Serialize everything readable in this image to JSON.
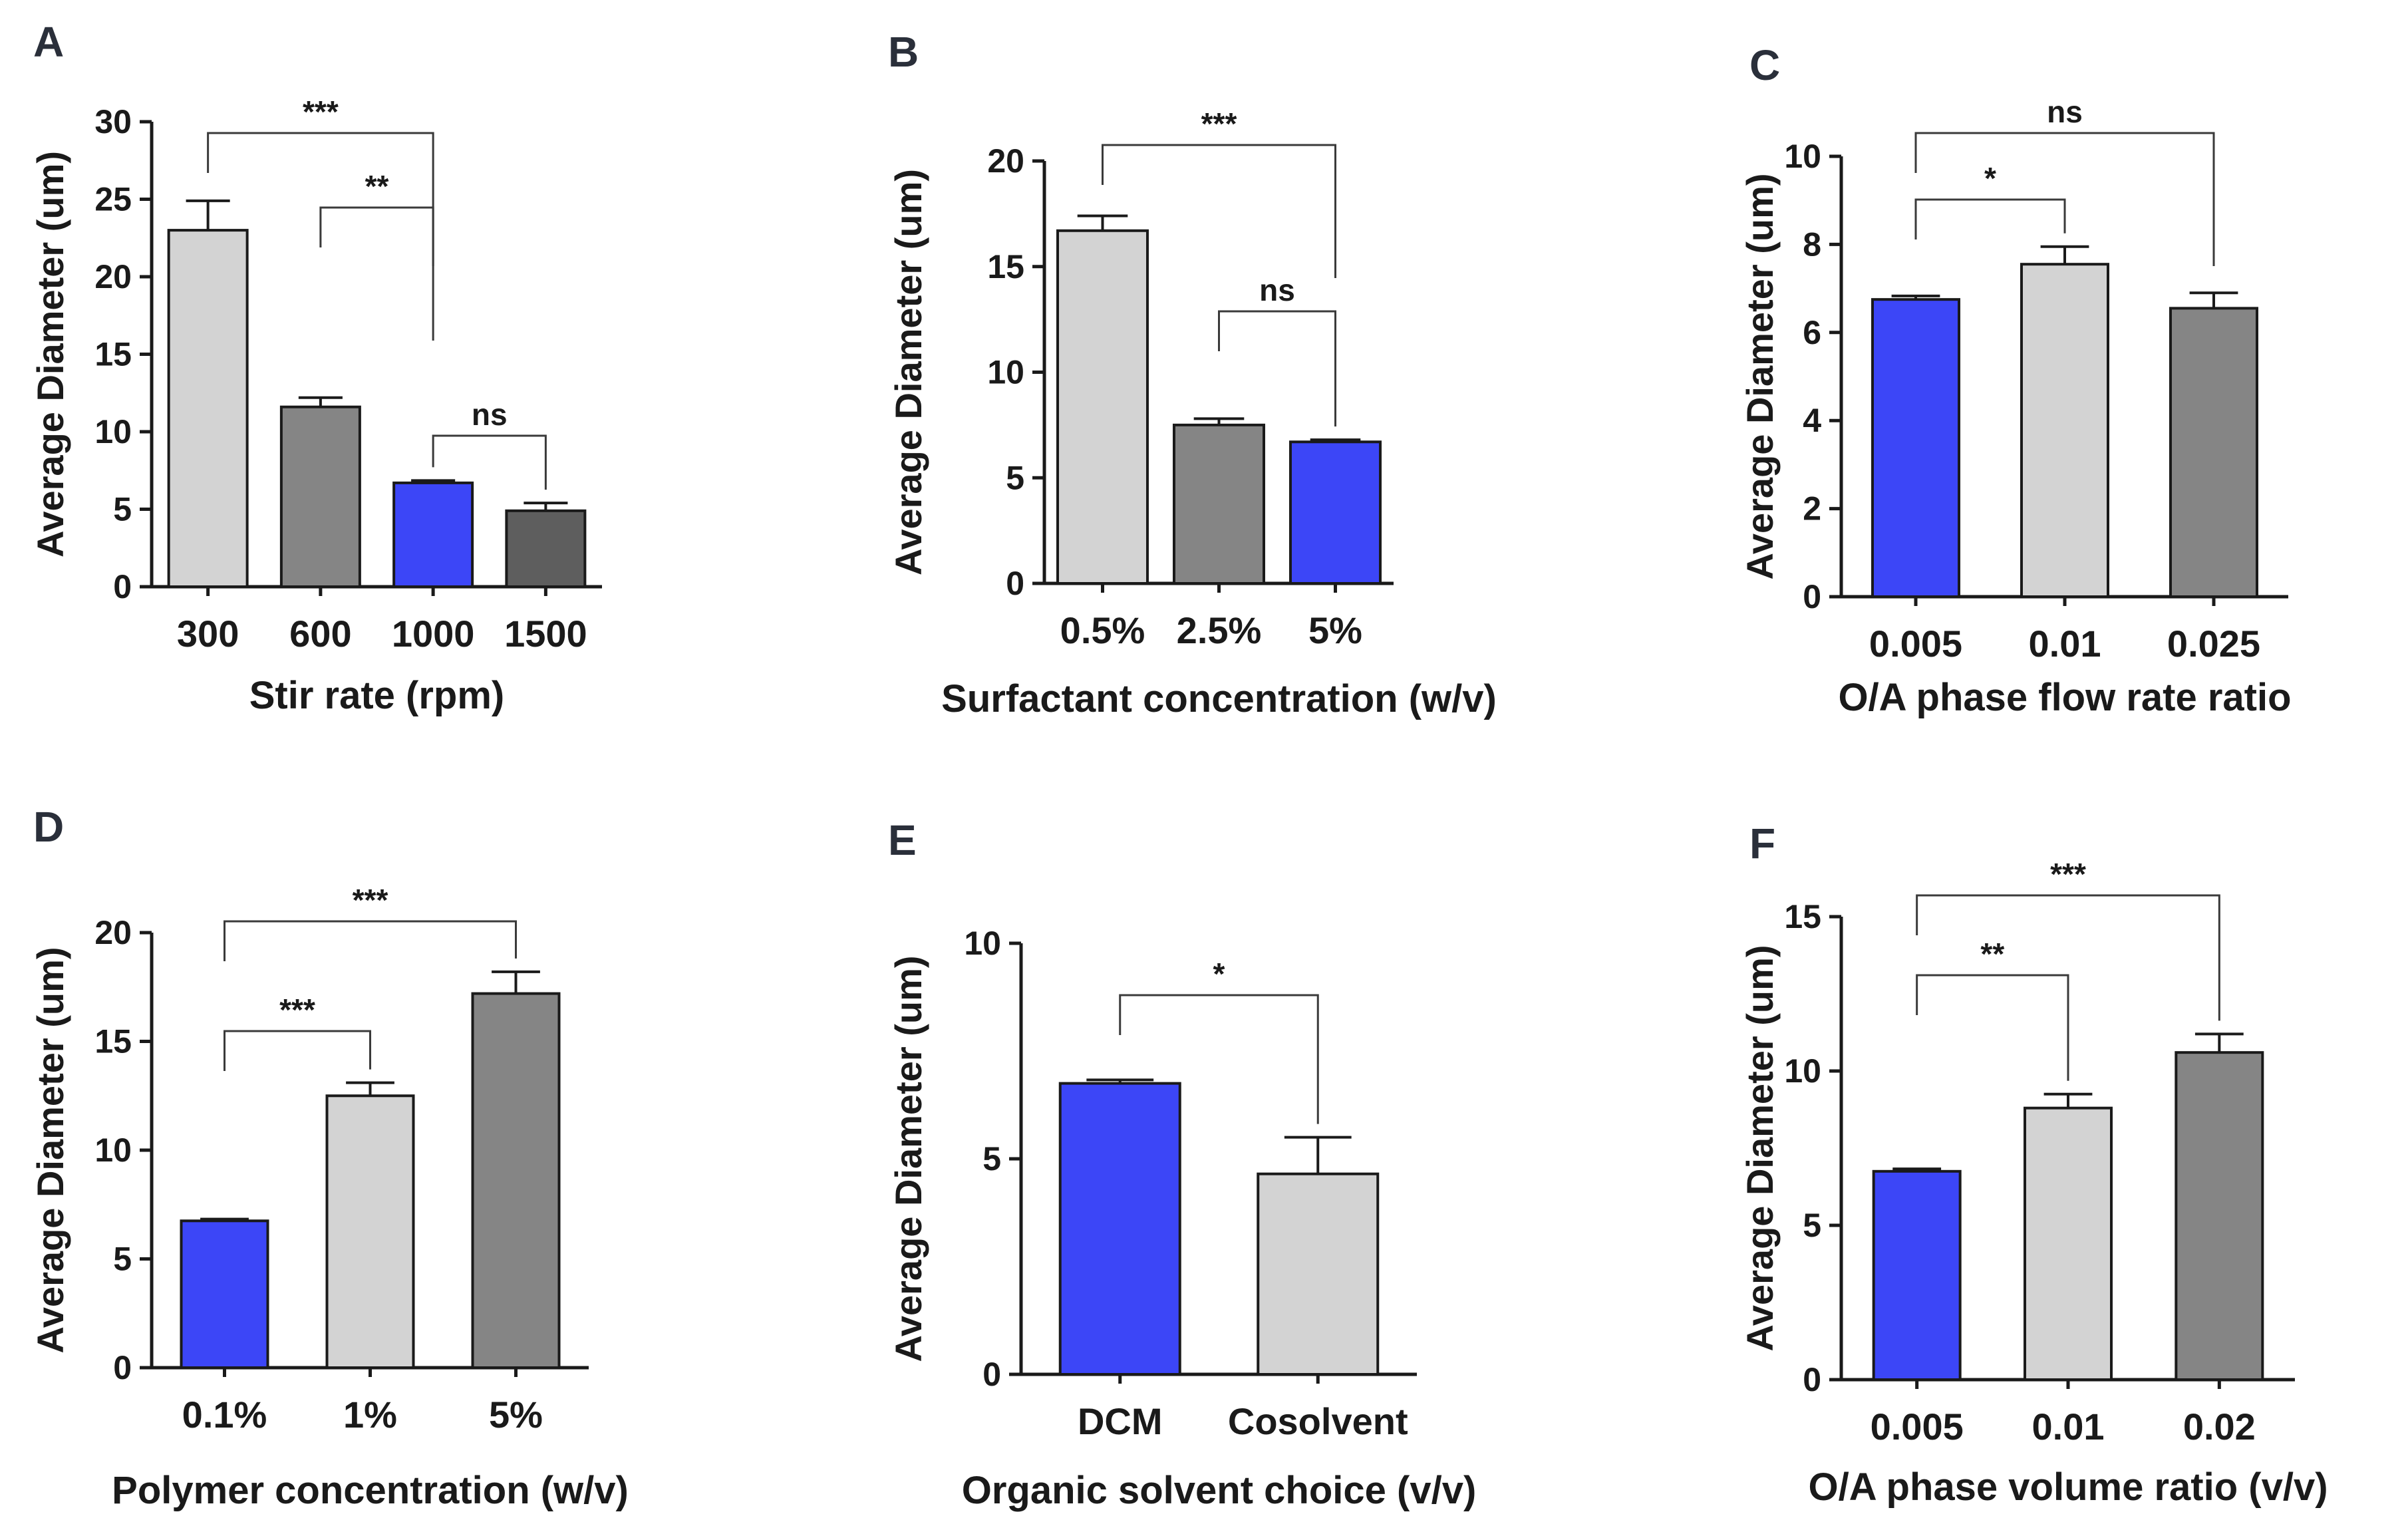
{
  "colors": {
    "blue": "#3c46f7",
    "light": "#d3d3d3",
    "mid": "#858585",
    "dark": "#5e5e5e"
  },
  "chart_data": [
    {
      "panel": "A",
      "type": "bar",
      "categories": [
        "300",
        "600",
        "1000",
        "1500"
      ],
      "values": [
        23,
        11.6,
        6.7,
        4.9
      ],
      "errors": [
        1.9,
        0.6,
        0.15,
        0.5
      ],
      "bar_colors": [
        "light",
        "mid",
        "blue",
        "dark"
      ],
      "xlabel": "Stir rate (rpm)",
      "ylabel": "Average Diameter (um)",
      "ylim": [
        0,
        30
      ],
      "yticks": [
        "0",
        "5",
        "10",
        "15",
        "20",
        "25",
        "30"
      ],
      "significance": [
        {
          "from": 0,
          "to": 2,
          "label": "***"
        },
        {
          "from": 1,
          "to": 2,
          "label": "**"
        },
        {
          "from": 2,
          "to": 3,
          "label": "ns"
        }
      ]
    },
    {
      "panel": "B",
      "type": "bar",
      "categories": [
        "0.5%",
        "2.5%",
        "5%"
      ],
      "values": [
        16.7,
        7.5,
        6.7
      ],
      "errors": [
        0.7,
        0.3,
        0.1
      ],
      "bar_colors": [
        "light",
        "mid",
        "blue"
      ],
      "xlabel": "Surfactant concentration (w/v)",
      "ylabel": "Average Diameter (um)",
      "ylim": [
        0,
        20
      ],
      "yticks": [
        "0",
        "5",
        "10",
        "15",
        "20"
      ],
      "significance": [
        {
          "from": 0,
          "to": 2,
          "label": "***"
        },
        {
          "from": 1,
          "to": 2,
          "label": "ns"
        }
      ]
    },
    {
      "panel": "C",
      "type": "bar",
      "categories": [
        "0.005",
        "0.01",
        "0.025"
      ],
      "values": [
        6.75,
        7.55,
        6.55
      ],
      "errors": [
        0.08,
        0.4,
        0.35
      ],
      "bar_colors": [
        "blue",
        "light",
        "mid"
      ],
      "xlabel": "O/A phase flow rate ratio",
      "ylabel": "Average Diameter (um)",
      "ylim": [
        0,
        10
      ],
      "yticks": [
        "0",
        "2",
        "4",
        "6",
        "8",
        "10"
      ],
      "significance": [
        {
          "from": 0,
          "to": 1,
          "label": "*"
        },
        {
          "from": 0,
          "to": 2,
          "label": "ns"
        }
      ]
    },
    {
      "panel": "D",
      "type": "bar",
      "categories": [
        "0.1%",
        "1%",
        "5%"
      ],
      "values": [
        6.75,
        12.5,
        17.2
      ],
      "errors": [
        0.08,
        0.6,
        1.0
      ],
      "bar_colors": [
        "blue",
        "light",
        "mid"
      ],
      "xlabel": "Polymer concentration (w/v)",
      "ylabel": "Average Diameter (um)",
      "ylim": [
        0,
        20
      ],
      "yticks": [
        "0",
        "5",
        "10",
        "15",
        "20"
      ],
      "significance": [
        {
          "from": 0,
          "to": 1,
          "label": "***"
        },
        {
          "from": 0,
          "to": 2,
          "label": "***"
        }
      ]
    },
    {
      "panel": "E",
      "type": "bar",
      "categories": [
        "DCM",
        "Cosolvent"
      ],
      "values": [
        6.75,
        4.65
      ],
      "errors": [
        0.08,
        0.85
      ],
      "bar_colors": [
        "blue",
        "light"
      ],
      "xlabel": "Organic solvent choice (v/v)",
      "ylabel": "Average Diameter (um)",
      "ylim": [
        0,
        10
      ],
      "yticks": [
        "0",
        "5",
        "10"
      ],
      "significance": [
        {
          "from": 0,
          "to": 1,
          "label": "*"
        }
      ]
    },
    {
      "panel": "F",
      "type": "bar",
      "categories": [
        "0.005",
        "0.01",
        "0.02"
      ],
      "values": [
        6.75,
        8.8,
        10.6
      ],
      "errors": [
        0.08,
        0.45,
        0.6
      ],
      "bar_colors": [
        "blue",
        "light",
        "mid"
      ],
      "xlabel": "O/A phase volume ratio (v/v)",
      "ylabel": "Average Diameter (um)",
      "ylim": [
        0,
        15
      ],
      "yticks": [
        "0",
        "5",
        "10",
        "15"
      ],
      "significance": [
        {
          "from": 0,
          "to": 1,
          "label": "**"
        },
        {
          "from": 0,
          "to": 2,
          "label": "***"
        }
      ]
    }
  ]
}
